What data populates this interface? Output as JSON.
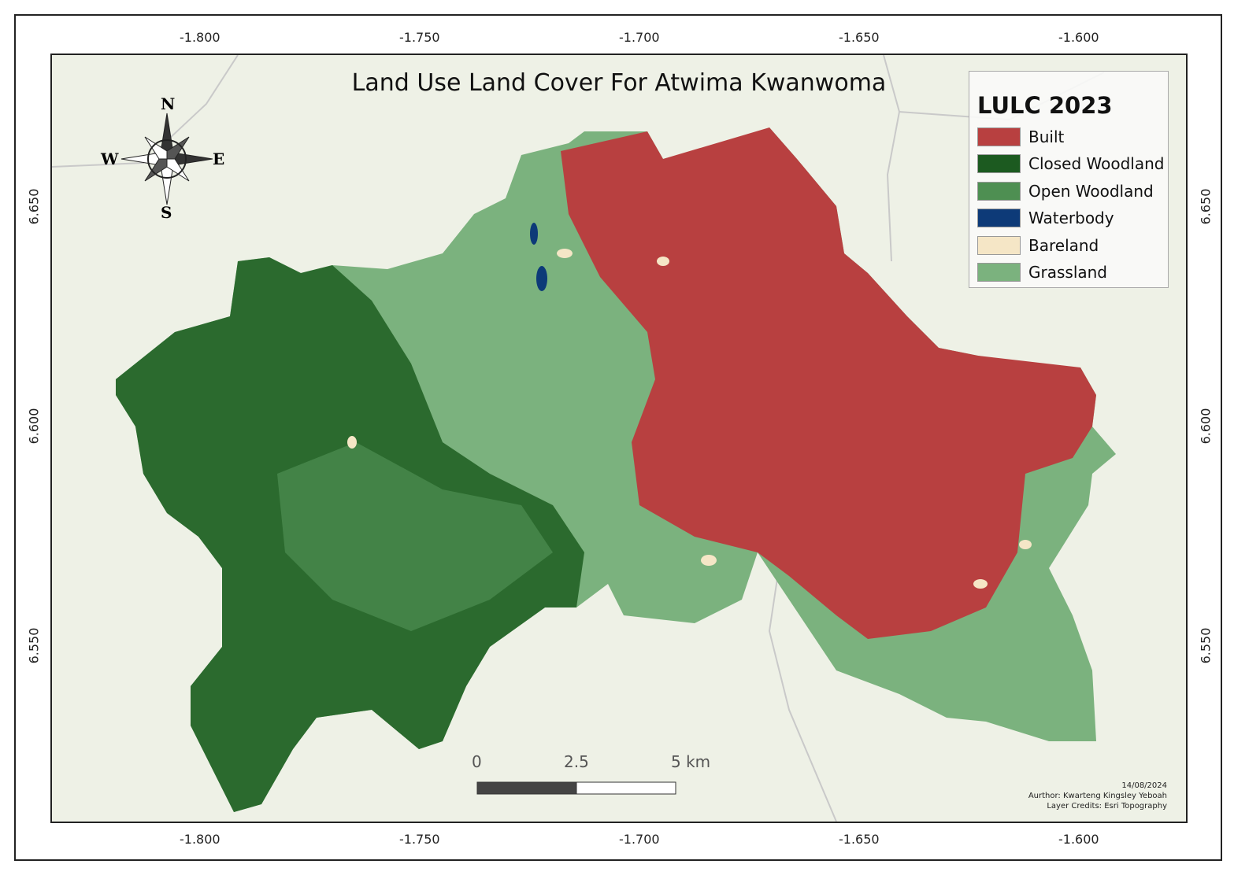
{
  "title": "Land Use Land Cover For Atwima Kwanwoma",
  "axes": {
    "longitude_ticks": [
      "-1.800",
      "-1.750",
      "-1.700",
      "-1.650",
      "-1.600"
    ],
    "latitude_ticks": [
      "6.650",
      "6.600",
      "6.550"
    ]
  },
  "legend": {
    "title": "LULC 2023",
    "items": [
      {
        "label": "Built",
        "color": "#b84040"
      },
      {
        "label": "Closed Woodland",
        "color": "#1c5a20"
      },
      {
        "label": "Open Woodland",
        "color": "#4e8f52"
      },
      {
        "label": "Waterbody",
        "color": "#0d3a78"
      },
      {
        "label": "Bareland",
        "color": "#f5e6c6"
      },
      {
        "label": "Grassland",
        "color": "#7bb27e"
      }
    ]
  },
  "compass": {
    "n": "N",
    "s": "S",
    "e": "E",
    "w": "W"
  },
  "scale_bar": {
    "labels": [
      "0",
      "2.5",
      "5 km"
    ]
  },
  "credits": {
    "date": "14/08/2024",
    "author": "Aurthor: Kwarteng Kingsley Yeboah",
    "layer_credits": "Layer Credits: Esri Topography"
  }
}
